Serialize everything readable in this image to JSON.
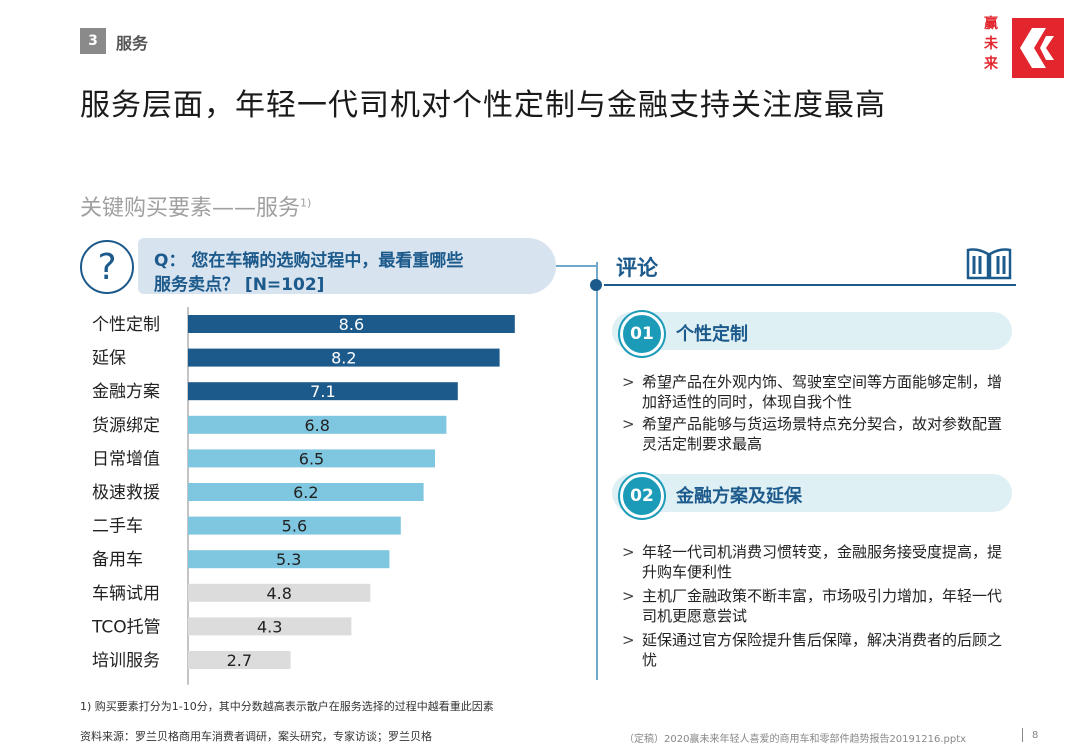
{
  "header": {
    "section_number": "3",
    "section_label": "服务",
    "headline": "服务层面，年轻一代司机对个性定制与金融支持关注度最高",
    "brand_text": "赢未来"
  },
  "subtitle": "关键购买要素——服务",
  "subtitle_note": "1)",
  "question": {
    "line1": "Q： 您在车辆的选购过程中，最看重哪些",
    "line2": "服务卖点？ [N=102]"
  },
  "chart_data": {
    "type": "bar",
    "orientation": "horizontal",
    "categories": [
      "个性定制",
      "延保",
      "金融方案",
      "货源绑定",
      "日常增值",
      "极速救援",
      "二手车",
      "备用车",
      "车辆试用",
      "TCO托管",
      "培训服务"
    ],
    "values": [
      8.6,
      8.2,
      7.1,
      6.8,
      6.5,
      6.2,
      5.6,
      5.3,
      4.8,
      4.3,
      2.7
    ],
    "value_labels": [
      "8.6",
      "8.2",
      "7.1",
      "6.8",
      "6.5",
      "6.2",
      "5.6",
      "5.3",
      "4.8",
      "4.3",
      "2.7"
    ],
    "xlim": [
      0,
      10
    ],
    "grid": false,
    "colors": {
      "top": "#1d5a8c",
      "mid": "#7fc6e0",
      "low": "#dcdcdc"
    },
    "tiers": [
      "top",
      "top",
      "top",
      "mid",
      "mid",
      "mid",
      "mid",
      "mid",
      "low",
      "low",
      "low"
    ]
  },
  "comment": {
    "title": "评论",
    "sections": [
      {
        "number": "01",
        "title": "个性定制",
        "bullets": [
          "希望产品在外观内饰、驾驶室空间等方面能够定制，增加舒适性的同时，体现自我个性",
          "希望产品能够与货运场景特点充分契合，故对参数配置灵活定制要求最高"
        ]
      },
      {
        "number": "02",
        "title": "金融方案及延保",
        "bullets": [
          "年轻一代司机消费习惯转变，金融服务接受度提高，提升购车便利性",
          "主机厂金融政策不断丰富，市场吸引力增加，年轻一代司机更愿意尝试",
          "延保通过官方保险提升售后保障，解决消费者的后顾之忧"
        ]
      }
    ],
    "bullet_marker": ">"
  },
  "footer": {
    "footnote": "1) 购买要素打分为1-10分，其中分数越高表示散户在服务选择的过程中越看重此因素",
    "source": "资料来源：罗兰贝格商用车消费者调研，案头研究，专家访谈；罗兰贝格",
    "file_ref": "（定稿）2020赢未来年轻人喜爱的商用车和零部件趋势报告20191216.pptx",
    "page_number": "8"
  }
}
